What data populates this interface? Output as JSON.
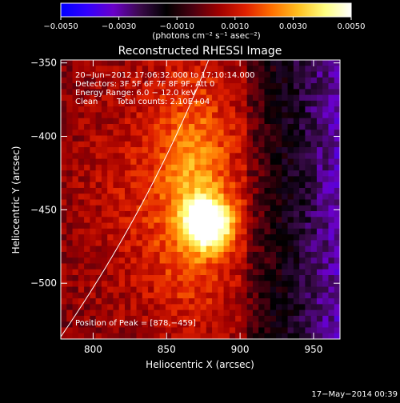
{
  "chart_data": {
    "type": "heatmap",
    "title": "Reconstructed RHESSI Image",
    "xlabel": "Heliocentric X (arcsec)",
    "ylabel": "Heliocentric Y (arcsec)",
    "xlim": [
      778,
      968
    ],
    "ylim": [
      -538,
      -348
    ],
    "x_ticks": [
      800,
      850,
      900,
      950
    ],
    "x_tick_labels": [
      "800",
      "850",
      "900",
      "950"
    ],
    "y_ticks": [
      -350,
      -400,
      -450,
      -500
    ],
    "y_tick_labels": [
      "−350",
      "−400",
      "−450",
      "−500"
    ],
    "colorbar": {
      "range": [
        -0.005,
        0.005
      ],
      "ticks": [
        -0.005,
        -0.003,
        -0.001,
        0.001,
        0.003,
        0.005
      ],
      "tick_labels": [
        "−0.0050",
        "−0.0030",
        "−0.0010",
        "0.0010",
        "0.0030",
        "0.0050"
      ],
      "units_label": "(photons cm⁻² s⁻¹ asec⁻²)"
    },
    "colors": {
      "cmap": [
        "#0000ff",
        "#3300ff",
        "#6a00c8",
        "#3a0a4a",
        "#000000",
        "#4a0010",
        "#a00000",
        "#e02000",
        "#ff7000",
        "#ffc020",
        "#ffff80",
        "#ffffff"
      ]
    },
    "grid": false,
    "peak": {
      "x": 878,
      "y": -459
    },
    "limb_visible": true,
    "annotations": {
      "time_range": "20−Jun−2012 17:06:32.000 to 17:10:14.000",
      "detectors": "Detectors: 3F 5F 6F 7F 8F 9F, Att 0",
      "energy": "Energy Range: 6.0 − 12.0 keV",
      "method": "Clean",
      "counts": "Total counts: 2.10E+04",
      "peak_text": "Position of Peak = [878,−459]"
    }
  },
  "footer": {
    "timestamp": "17−May−2014 00:39"
  }
}
